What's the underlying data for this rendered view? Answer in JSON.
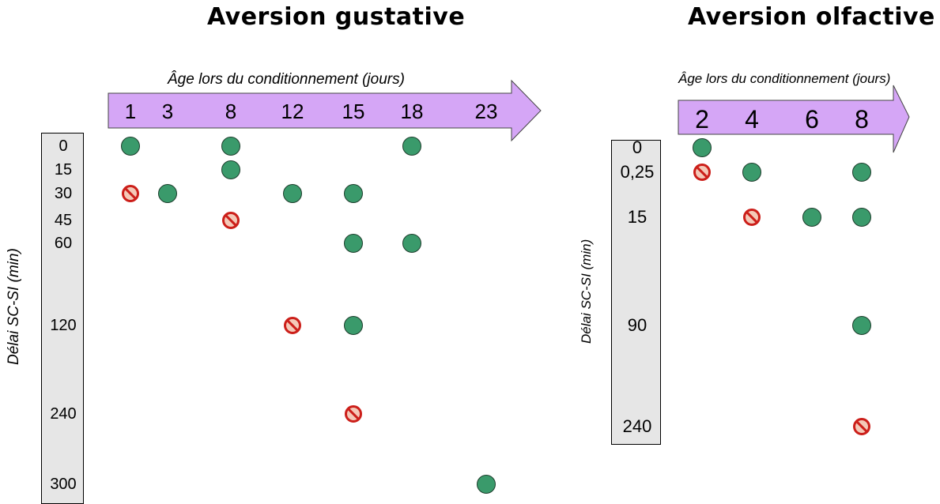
{
  "panels": [
    {
      "id": "gustative",
      "title": "Aversion gustative",
      "xlabel": "Âge lors du conditionnement (jours)",
      "ylabel": "Délai SC-SI (min)",
      "x_ticks": [
        "1",
        "3",
        "8",
        "12",
        "15",
        "18",
        "23"
      ],
      "y_ticks": [
        "0",
        "15",
        "30",
        "45",
        "60",
        "120",
        "240",
        "300"
      ],
      "arrow_color": "#d5a6f6",
      "points": [
        {
          "age": "1",
          "delay": "0",
          "result": "yes"
        },
        {
          "age": "8",
          "delay": "0",
          "result": "yes"
        },
        {
          "age": "18",
          "delay": "0",
          "result": "yes"
        },
        {
          "age": "8",
          "delay": "15",
          "result": "yes"
        },
        {
          "age": "1",
          "delay": "30",
          "result": "no"
        },
        {
          "age": "3",
          "delay": "30",
          "result": "yes"
        },
        {
          "age": "12",
          "delay": "30",
          "result": "yes"
        },
        {
          "age": "15",
          "delay": "30",
          "result": "yes"
        },
        {
          "age": "8",
          "delay": "45",
          "result": "no"
        },
        {
          "age": "15",
          "delay": "60",
          "result": "yes"
        },
        {
          "age": "18",
          "delay": "60",
          "result": "yes"
        },
        {
          "age": "12",
          "delay": "120",
          "result": "no"
        },
        {
          "age": "15",
          "delay": "120",
          "result": "yes"
        },
        {
          "age": "15",
          "delay": "240",
          "result": "no"
        },
        {
          "age": "23",
          "delay": "300",
          "result": "yes"
        }
      ]
    },
    {
      "id": "olfactive",
      "title": "Aversion olfactive",
      "xlabel": "Âge lors du conditionnement (jours)",
      "ylabel": "Délai SC-SI (min)",
      "x_ticks": [
        "2",
        "4",
        "6",
        "8"
      ],
      "y_ticks": [
        "0",
        "0,25",
        "15",
        "90",
        "240"
      ],
      "arrow_color": "#d5a6f6",
      "points": [
        {
          "age": "2",
          "delay": "0",
          "result": "yes"
        },
        {
          "age": "2",
          "delay": "0,25",
          "result": "no"
        },
        {
          "age": "4",
          "delay": "0,25",
          "result": "yes"
        },
        {
          "age": "8",
          "delay": "0,25",
          "result": "yes"
        },
        {
          "age": "4",
          "delay": "15",
          "result": "no"
        },
        {
          "age": "6",
          "delay": "15",
          "result": "yes"
        },
        {
          "age": "8",
          "delay": "15",
          "result": "yes"
        },
        {
          "age": "8",
          "delay": "90",
          "result": "yes"
        },
        {
          "age": "8",
          "delay": "240",
          "result": "no"
        }
      ]
    }
  ],
  "colors": {
    "success": "#3a9a6b",
    "failure_outline": "#cc1f1a",
    "failure_fill": "#f4c9b8"
  },
  "icons": {
    "yes": "green-dot-icon",
    "no": "prohibited-icon"
  }
}
